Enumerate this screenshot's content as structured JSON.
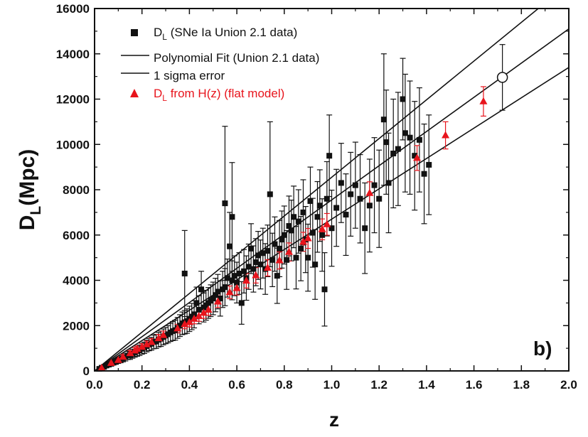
{
  "chart_data": {
    "type": "scatter",
    "xlabel": "z",
    "ylabel_main": "D",
    "ylabel_sub": "L",
    "ylabel_rest": "(Mpc)",
    "panel_label": "b)",
    "xlim": [
      0,
      2.0
    ],
    "ylim": [
      0,
      16000
    ],
    "xticks": [
      "0.0",
      "0.2",
      "0.4",
      "0.6",
      "0.8",
      "1.0",
      "1.2",
      "1.4",
      "1.6",
      "1.8",
      "2.0"
    ],
    "yticks": [
      "0",
      "2000",
      "4000",
      "6000",
      "8000",
      "10000",
      "12000",
      "14000",
      "16000"
    ],
    "legend": [
      {
        "main": "D",
        "sub": "L",
        "rest": " (SNe Ia Union 2.1 data)",
        "color": "#111111",
        "marker": "square"
      },
      {
        "main": "Polynomial Fit (Union 2.1 data)",
        "sub": "",
        "rest": "",
        "color": "#111111",
        "marker": "line"
      },
      {
        "main": "1 sigma error",
        "sub": "",
        "rest": "",
        "color": "#111111",
        "marker": "line"
      },
      {
        "main": "D",
        "sub": "L",
        "rest": " from H(z) (flat model)",
        "color": "#e8141c",
        "marker": "triangle"
      }
    ],
    "fit_lines": [
      {
        "name": "upper",
        "x": [
          0,
          2.0
        ],
        "y": [
          0,
          17100
        ]
      },
      {
        "name": "fit",
        "x": [
          0,
          2.0
        ],
        "y": [
          0,
          15100
        ]
      },
      {
        "name": "lower",
        "x": [
          0,
          2.0
        ],
        "y": [
          0,
          13400
        ]
      }
    ],
    "series": [
      {
        "name": "SNe Ia Union 2.1",
        "color": "#111111",
        "marker": "square",
        "points": [
          [
            0.02,
            90,
            60
          ],
          [
            0.03,
            140,
            70
          ],
          [
            0.04,
            180,
            80
          ],
          [
            0.05,
            240,
            90
          ],
          [
            0.06,
            280,
            100
          ],
          [
            0.07,
            320,
            110
          ],
          [
            0.08,
            380,
            120
          ],
          [
            0.09,
            420,
            130
          ],
          [
            0.1,
            470,
            140
          ],
          [
            0.11,
            510,
            150
          ],
          [
            0.12,
            560,
            160
          ],
          [
            0.13,
            610,
            170
          ],
          [
            0.14,
            680,
            180
          ],
          [
            0.15,
            700,
            190
          ],
          [
            0.16,
            760,
            200
          ],
          [
            0.17,
            820,
            210
          ],
          [
            0.18,
            870,
            220
          ],
          [
            0.19,
            910,
            230
          ],
          [
            0.2,
            980,
            240
          ],
          [
            0.21,
            1020,
            250
          ],
          [
            0.22,
            1100,
            260
          ],
          [
            0.23,
            1160,
            270
          ],
          [
            0.24,
            1200,
            280
          ],
          [
            0.25,
            1280,
            300
          ],
          [
            0.26,
            1300,
            310
          ],
          [
            0.27,
            1380,
            320
          ],
          [
            0.28,
            1420,
            340
          ],
          [
            0.29,
            1500,
            350
          ],
          [
            0.3,
            1560,
            360
          ],
          [
            0.31,
            1620,
            380
          ],
          [
            0.32,
            1700,
            400
          ],
          [
            0.33,
            1760,
            420
          ],
          [
            0.34,
            1800,
            440
          ],
          [
            0.35,
            1900,
            460
          ],
          [
            0.36,
            2000,
            480
          ],
          [
            0.37,
            2100,
            500
          ],
          [
            0.38,
            4300,
            1900
          ],
          [
            0.38,
            2150,
            520
          ],
          [
            0.39,
            2200,
            540
          ],
          [
            0.4,
            2300,
            560
          ],
          [
            0.41,
            2400,
            580
          ],
          [
            0.42,
            2500,
            600
          ],
          [
            0.43,
            3000,
            700
          ],
          [
            0.44,
            2700,
            620
          ],
          [
            0.45,
            3600,
            800
          ],
          [
            0.46,
            2800,
            640
          ],
          [
            0.47,
            2900,
            660
          ],
          [
            0.48,
            3000,
            680
          ],
          [
            0.49,
            3100,
            700
          ],
          [
            0.5,
            3200,
            720
          ],
          [
            0.51,
            3350,
            740
          ],
          [
            0.52,
            3500,
            760
          ],
          [
            0.53,
            3200,
            780
          ],
          [
            0.54,
            3600,
            800
          ],
          [
            0.55,
            7400,
            3400
          ],
          [
            0.55,
            3700,
            820
          ],
          [
            0.56,
            4100,
            840
          ],
          [
            0.57,
            5500,
            1500
          ],
          [
            0.58,
            6800,
            2400
          ],
          [
            0.58,
            4000,
            860
          ],
          [
            0.59,
            4200,
            880
          ],
          [
            0.6,
            3900,
            900
          ],
          [
            0.61,
            4300,
            920
          ],
          [
            0.62,
            3000,
            940
          ],
          [
            0.63,
            4400,
            960
          ],
          [
            0.64,
            4100,
            980
          ],
          [
            0.65,
            4600,
            1000
          ],
          [
            0.66,
            5400,
            1100
          ],
          [
            0.67,
            4500,
            1020
          ],
          [
            0.68,
            4800,
            1040
          ],
          [
            0.69,
            5100,
            1060
          ],
          [
            0.7,
            4700,
            1080
          ],
          [
            0.71,
            5200,
            1100
          ],
          [
            0.72,
            4500,
            1120
          ],
          [
            0.73,
            5300,
            1140
          ],
          [
            0.74,
            7800,
            3200
          ],
          [
            0.75,
            4900,
            1180
          ],
          [
            0.76,
            5600,
            1200
          ],
          [
            0.77,
            4200,
            1220
          ],
          [
            0.78,
            5400,
            1240
          ],
          [
            0.79,
            5800,
            1260
          ],
          [
            0.8,
            6000,
            1280
          ],
          [
            0.81,
            4900,
            1300
          ],
          [
            0.82,
            6400,
            1320
          ],
          [
            0.83,
            6200,
            1340
          ],
          [
            0.84,
            6800,
            1360
          ],
          [
            0.85,
            5000,
            1380
          ],
          [
            0.86,
            6600,
            1400
          ],
          [
            0.87,
            5400,
            1420
          ],
          [
            0.88,
            7000,
            1440
          ],
          [
            0.89,
            5800,
            1460
          ],
          [
            0.9,
            5000,
            1480
          ],
          [
            0.91,
            7500,
            1500
          ],
          [
            0.92,
            6100,
            1520
          ],
          [
            0.93,
            4700,
            1540
          ],
          [
            0.94,
            6800,
            1560
          ],
          [
            0.95,
            7300,
            1580
          ],
          [
            0.96,
            6000,
            1600
          ],
          [
            0.97,
            3600,
            1620
          ],
          [
            0.98,
            7600,
            1640
          ],
          [
            0.99,
            9500,
            1800
          ],
          [
            1.0,
            6300,
            1680
          ],
          [
            1.02,
            7200,
            1700
          ],
          [
            1.04,
            8300,
            1750
          ],
          [
            1.06,
            6900,
            1800
          ],
          [
            1.08,
            7800,
            1850
          ],
          [
            1.1,
            8200,
            1900
          ],
          [
            1.12,
            7600,
            1950
          ],
          [
            1.14,
            6300,
            2000
          ],
          [
            1.16,
            7300,
            2050
          ],
          [
            1.18,
            8200,
            2100
          ],
          [
            1.2,
            7600,
            2150
          ],
          [
            1.22,
            11100,
            2900
          ],
          [
            1.23,
            10100,
            2300
          ],
          [
            1.24,
            8300,
            2200
          ],
          [
            1.26,
            9600,
            2400
          ],
          [
            1.28,
            9800,
            2500
          ],
          [
            1.3,
            12000,
            1800
          ],
          [
            1.31,
            10500,
            2600
          ],
          [
            1.33,
            10300,
            2500
          ],
          [
            1.35,
            9500,
            2400
          ],
          [
            1.37,
            10200,
            2300
          ],
          [
            1.39,
            8700,
            2200
          ],
          [
            1.41,
            9100,
            2200
          ]
        ]
      },
      {
        "name": "D_L from H(z)",
        "color": "#e8141c",
        "marker": "triangle",
        "points": [
          [
            0.03,
            130,
            50
          ],
          [
            0.07,
            350,
            80
          ],
          [
            0.1,
            480,
            90
          ],
          [
            0.12,
            620,
            100
          ],
          [
            0.15,
            780,
            120
          ],
          [
            0.17,
            900,
            130
          ],
          [
            0.18,
            970,
            130
          ],
          [
            0.2,
            1060,
            140
          ],
          [
            0.22,
            1170,
            150
          ],
          [
            0.24,
            1270,
            160
          ],
          [
            0.27,
            1440,
            170
          ],
          [
            0.29,
            1580,
            180
          ],
          [
            0.35,
            1870,
            190
          ],
          [
            0.38,
            2060,
            200
          ],
          [
            0.4,
            2150,
            210
          ],
          [
            0.42,
            2300,
            220
          ],
          [
            0.44,
            2420,
            230
          ],
          [
            0.46,
            2560,
            240
          ],
          [
            0.48,
            2700,
            250
          ],
          [
            0.52,
            3060,
            260
          ],
          [
            0.57,
            3470,
            280
          ],
          [
            0.6,
            3650,
            300
          ],
          [
            0.64,
            3980,
            320
          ],
          [
            0.68,
            4220,
            340
          ],
          [
            0.73,
            4550,
            360
          ],
          [
            0.78,
            4880,
            380
          ],
          [
            0.82,
            5250,
            400
          ],
          [
            0.88,
            5700,
            420
          ],
          [
            0.9,
            5850,
            440
          ],
          [
            0.96,
            6250,
            460
          ],
          [
            0.98,
            6470,
            480
          ],
          [
            1.16,
            7850,
            500
          ],
          [
            1.36,
            9400,
            550
          ],
          [
            1.48,
            10400,
            600
          ],
          [
            1.64,
            11900,
            650
          ]
        ]
      },
      {
        "name": "open circle",
        "color": "#111111",
        "marker": "circle",
        "points": [
          [
            1.72,
            12960,
            1450
          ]
        ]
      }
    ]
  }
}
